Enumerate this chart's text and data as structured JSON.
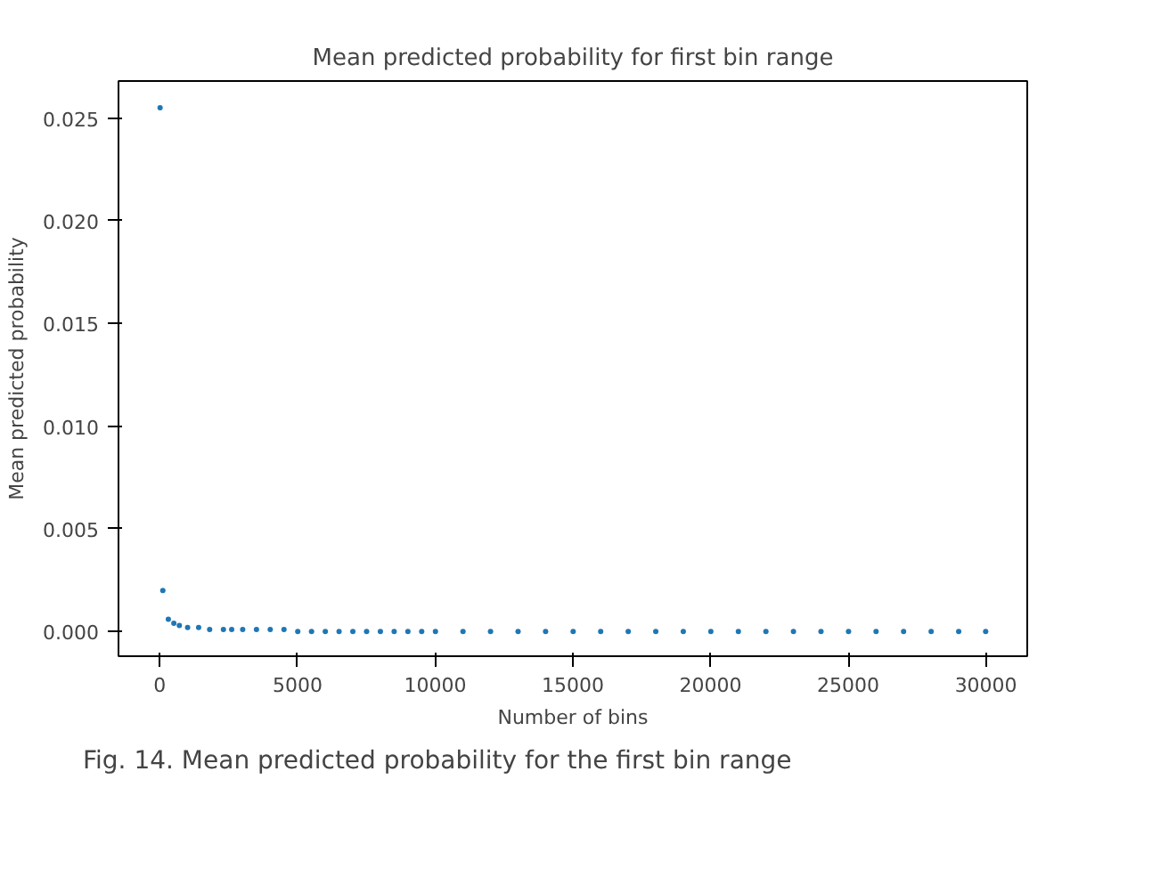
{
  "chart_data": {
    "type": "scatter",
    "title": "Mean predicted probability for first bin range",
    "xlabel": "Number of bins",
    "ylabel": "Mean predicted probability",
    "annotations": [
      "Fig. 14. Mean predicted probability for the first bin range"
    ],
    "x": [
      10,
      110,
      310,
      510,
      710,
      1010,
      1410,
      1810,
      2310,
      2610,
      3010,
      3510,
      4010,
      4510,
      5010,
      5510,
      6010,
      6510,
      7010,
      7510,
      8010,
      8510,
      9010,
      9510,
      10010,
      11010,
      12010,
      13010,
      14010,
      15010,
      16010,
      17010,
      18010,
      19010,
      20010,
      21010,
      22010,
      23010,
      24010,
      25010,
      26010,
      27010,
      28010,
      29010,
      29990
    ],
    "values": [
      0.0255,
      0.002,
      0.0006,
      0.0004,
      0.0003,
      0.0002,
      0.0002,
      0.0001,
      0.0001,
      0.0001,
      0.0001,
      0.0001,
      0.0001,
      0.0001,
      0,
      0,
      0,
      0,
      0,
      0,
      0,
      0,
      0,
      0,
      0,
      0,
      0,
      0,
      0,
      0,
      0,
      0,
      0,
      0,
      0,
      0,
      0,
      0,
      0,
      0,
      0,
      0,
      0,
      0,
      0
    ],
    "color": "#1f77b4",
    "marker": "circle",
    "grid": false,
    "xlim": [
      -1500,
      31500
    ],
    "ylim": [
      -0.0012,
      0.0268
    ],
    "xticks": [
      0,
      5000,
      10000,
      15000,
      20000,
      25000,
      30000
    ],
    "yticks": [
      {
        "value": 0,
        "label": "0.000"
      },
      {
        "value": 0.005,
        "label": "0.005"
      },
      {
        "value": 0.01,
        "label": "0.010"
      },
      {
        "value": 0.015,
        "label": "0.015"
      },
      {
        "value": 0.02,
        "label": "0.020"
      },
      {
        "value": 0.025,
        "label": "0.025"
      }
    ]
  }
}
